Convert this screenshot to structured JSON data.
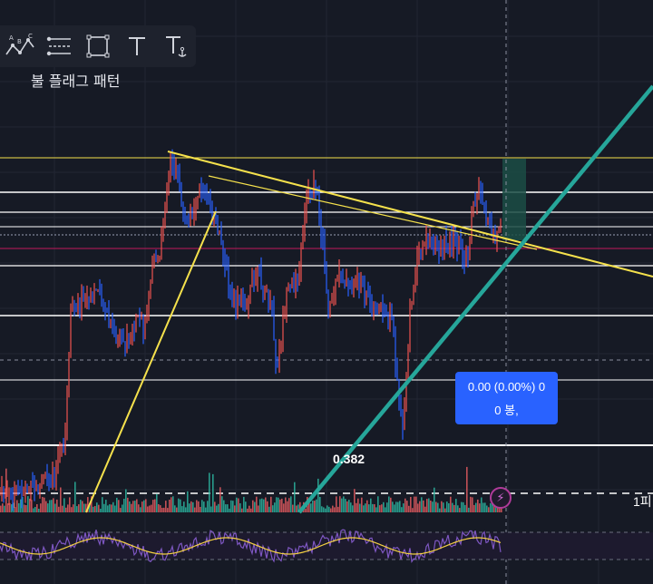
{
  "toolbar": {
    "tools": [
      {
        "name": "pattern-tool",
        "icon": "abc-pattern-icon"
      },
      {
        "name": "fib-levels-tool",
        "icon": "levels-icon"
      },
      {
        "name": "rectangle-tool",
        "icon": "rectangle-icon"
      },
      {
        "name": "text-tool",
        "icon": "text-icon"
      },
      {
        "name": "anchored-text-tool",
        "icon": "anchored-text-icon"
      }
    ]
  },
  "pattern_label": "불 플래그 패턴",
  "fib_label": "0.382",
  "axis_tag": "1피",
  "tooltip": {
    "line1": "0.00 (0.00%) 0",
    "line2": "0 봉,"
  },
  "colors": {
    "background": "#161a25",
    "up_candle": "#ef5350",
    "down_candle": "#2962ff",
    "trendline": "#f5e14c",
    "channel": "#26a69a",
    "rsi": "#7e57c2",
    "rsi_ma": "#f5d142"
  }
}
